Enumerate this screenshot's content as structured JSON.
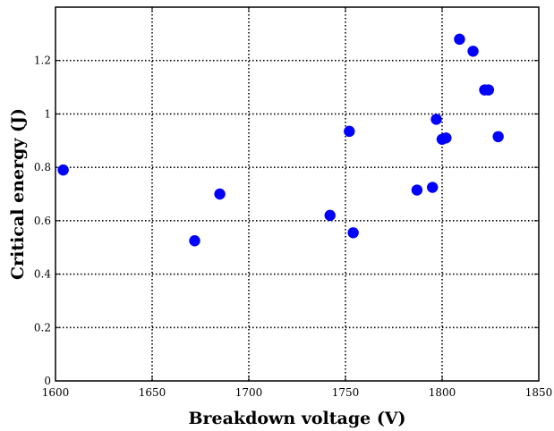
{
  "chart_data": {
    "type": "scatter",
    "title": "",
    "xlabel": "Breakdown voltage (V)",
    "ylabel": "Critical energy (J)",
    "xlim": [
      1600,
      1850
    ],
    "ylim": [
      0,
      1.4
    ],
    "grid": true,
    "grid_style": "dotted",
    "marker_color": "#0000ff",
    "x_ticks": [
      1600,
      1650,
      1700,
      1750,
      1800,
      1850
    ],
    "x_tick_labels": [
      "1600",
      "1650",
      "1700",
      "1750",
      "1800",
      "1850"
    ],
    "y_ticks": [
      0,
      0.2,
      0.4,
      0.6,
      0.8,
      1.0,
      1.2
    ],
    "y_tick_labels": [
      "0",
      "0.2",
      "0.4",
      "0.6",
      "0.8",
      "1",
      "1.2"
    ],
    "points": [
      {
        "x": 1604,
        "y": 0.79
      },
      {
        "x": 1672,
        "y": 0.525
      },
      {
        "x": 1685,
        "y": 0.7
      },
      {
        "x": 1742,
        "y": 0.62
      },
      {
        "x": 1752,
        "y": 0.935
      },
      {
        "x": 1754,
        "y": 0.555
      },
      {
        "x": 1787,
        "y": 0.715
      },
      {
        "x": 1795,
        "y": 0.725
      },
      {
        "x": 1797,
        "y": 0.98
      },
      {
        "x": 1800,
        "y": 0.905
      },
      {
        "x": 1802,
        "y": 0.91
      },
      {
        "x": 1809,
        "y": 1.28
      },
      {
        "x": 1816,
        "y": 1.235
      },
      {
        "x": 1822,
        "y": 1.09
      },
      {
        "x": 1824,
        "y": 1.09
      },
      {
        "x": 1829,
        "y": 0.915
      }
    ]
  }
}
